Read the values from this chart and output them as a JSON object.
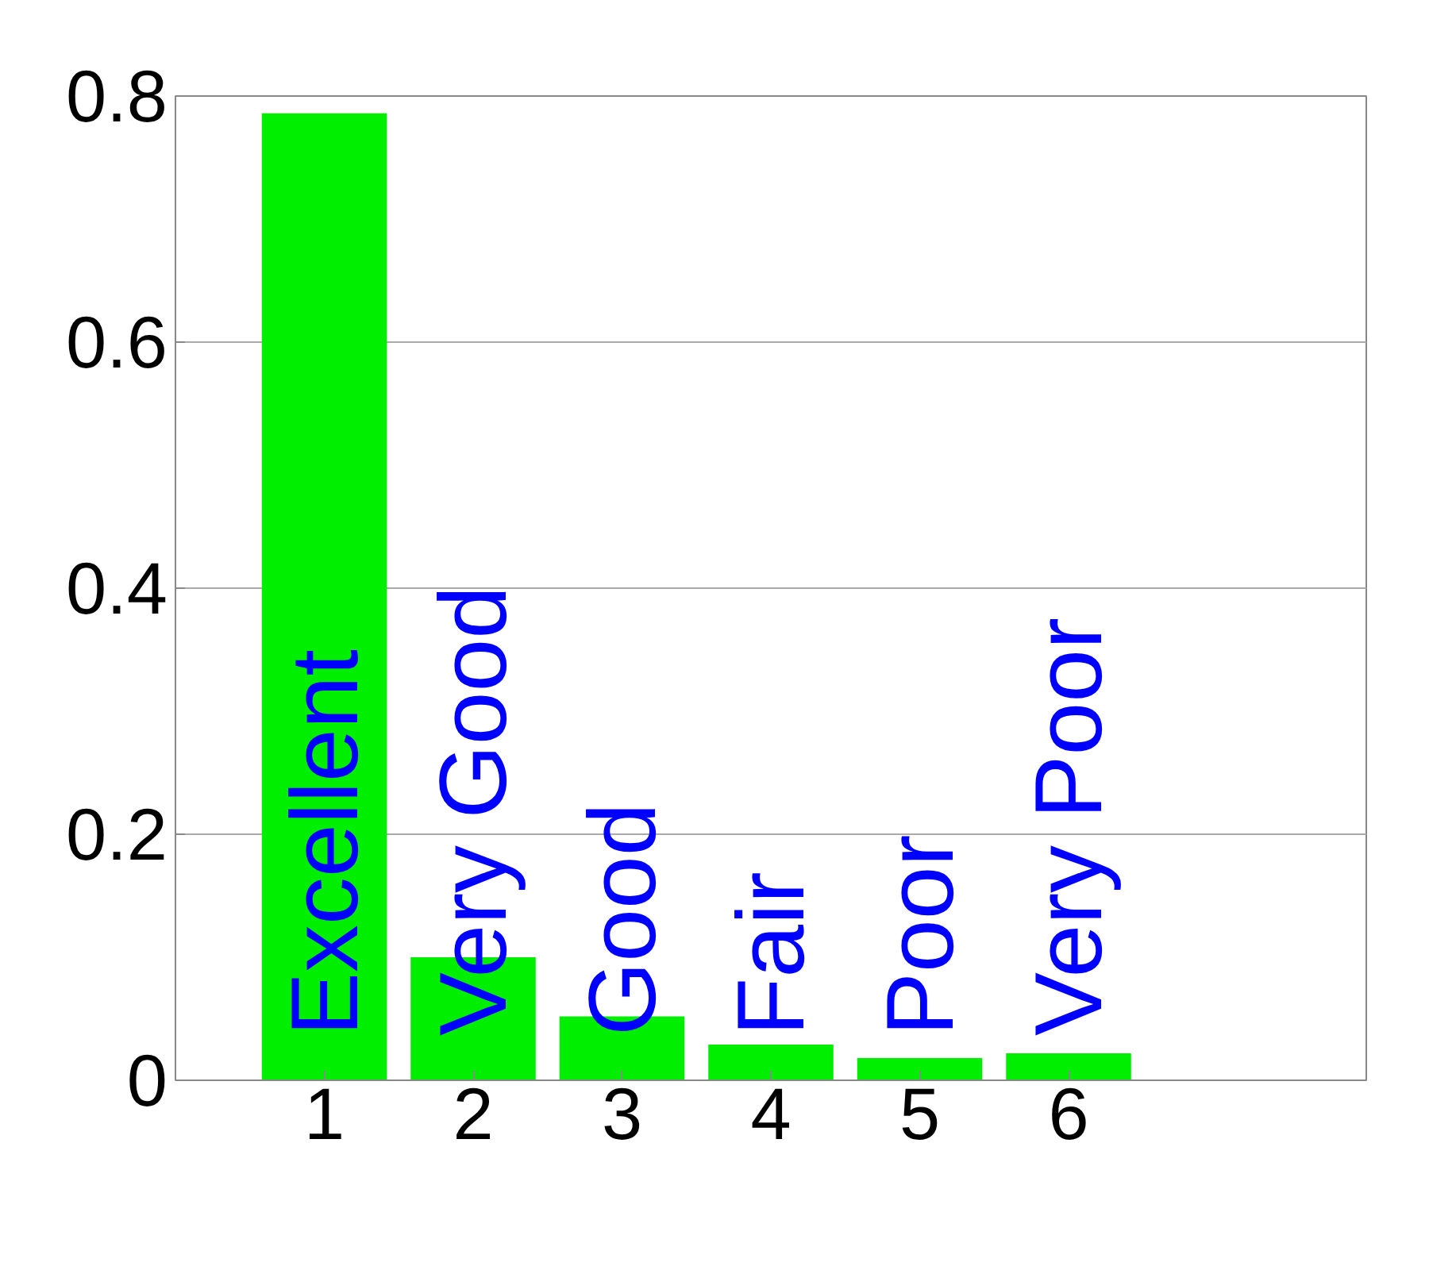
{
  "chart_data": {
    "type": "bar",
    "x": [
      1,
      2,
      3,
      4,
      5,
      6
    ],
    "values": [
      0.786,
      0.1,
      0.052,
      0.029,
      0.018,
      0.022
    ],
    "color": "#00ee00",
    "xlim": [
      0,
      8
    ],
    "xticks": [
      1,
      2,
      3,
      4,
      5,
      6
    ],
    "ylim": [
      0,
      0.8
    ],
    "yticks": [
      0,
      0.2,
      0.4,
      0.6,
      0.8
    ],
    "grid": "y",
    "annotations": [
      "Excellent",
      "Very Good",
      "Good",
      "Fair",
      "Poor",
      "Very Poor"
    ]
  }
}
